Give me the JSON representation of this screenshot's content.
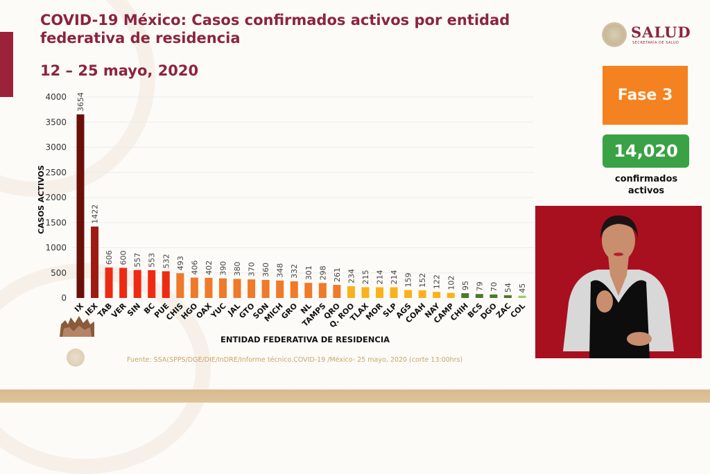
{
  "header": {
    "title": "COVID-19 México: Casos confirmados activos por entidad federativa de residencia",
    "date_range": "12 – 25 mayo, 2020"
  },
  "logo": {
    "name": "SALUD",
    "subtitle": "SECRETARÍA DE SALUD",
    "icon": "national-seal-icon"
  },
  "sidebar": {
    "phase_label": "Fase 3",
    "total_value": "14,020",
    "total_caption_line1": "confirmados",
    "total_caption_line2": "activos",
    "phase_color": "#f58220",
    "total_color": "#3aa245"
  },
  "video": {
    "description": "sign-language-interpreter",
    "background_color": "#a8101f"
  },
  "footer": {
    "source": "Fuente: SSA(SPPS/DGE/DIE/InDRE/Informe técnico.COVID-19 /México- 25 mayo, 2020 (corte 13:00hrs)"
  },
  "chart_data": {
    "type": "bar",
    "title": "COVID-19 México: Casos confirmados activos por entidad federativa de residencia",
    "xlabel": "ENTIDAD FEDERATIVA DE  RESIDENCIA",
    "ylabel": "CASOS ACTIVOS",
    "ylim": [
      0,
      4000
    ],
    "yticks": [
      0,
      500,
      1000,
      1500,
      2000,
      2500,
      3000,
      3500,
      4000
    ],
    "grid": true,
    "categories": [
      "CDMX",
      "MEX",
      "TAB",
      "VER",
      "SIN",
      "BC",
      "PUE",
      "CHIS",
      "HGO",
      "OAX",
      "YUC",
      "JAL",
      "GTO",
      "SON",
      "MICH",
      "GRO",
      "NL",
      "TAMPS",
      "QRO",
      "Q. ROO",
      "TLAX",
      "MOR",
      "SLP",
      "AGS",
      "COAH",
      "NAY",
      "CAMP",
      "CHIH",
      "BCS",
      "DGO",
      "ZAC",
      "COL"
    ],
    "visible_category_labels": [
      "IX",
      "IEX",
      "TAB",
      "VER",
      "SIN",
      "BC",
      "PUE",
      "CHIS",
      "HGO",
      "OAX",
      "YUC",
      "JAL",
      "GTO",
      "SON",
      "MICH",
      "GRO",
      "NL",
      "TAMPS",
      "QRO",
      "Q. ROO",
      "TLAX",
      "MOR",
      "SLP",
      "AGS",
      "COAH",
      "NAY",
      "CAMP",
      "CHIH",
      "BCS",
      "DGO",
      "ZAC",
      "COL"
    ],
    "values": [
      3654,
      1422,
      606,
      600,
      557,
      553,
      532,
      493,
      406,
      402,
      390,
      380,
      370,
      360,
      348,
      332,
      301,
      298,
      261,
      234,
      215,
      214,
      214,
      159,
      152,
      122,
      102,
      95,
      79,
      70,
      54,
      45
    ],
    "color_scale": [
      {
        "min": 3000,
        "color": "#6b0f0a"
      },
      {
        "min": 1000,
        "color": "#9e1b12"
      },
      {
        "min": 500,
        "color": "#ee2a12"
      },
      {
        "min": 250,
        "color": "#ee7a2a"
      },
      {
        "min": 100,
        "color": "#f9b21b"
      },
      {
        "min": 50,
        "color": "#4a7a2a"
      },
      {
        "min": 0,
        "color": "#9ccc6a"
      }
    ]
  }
}
